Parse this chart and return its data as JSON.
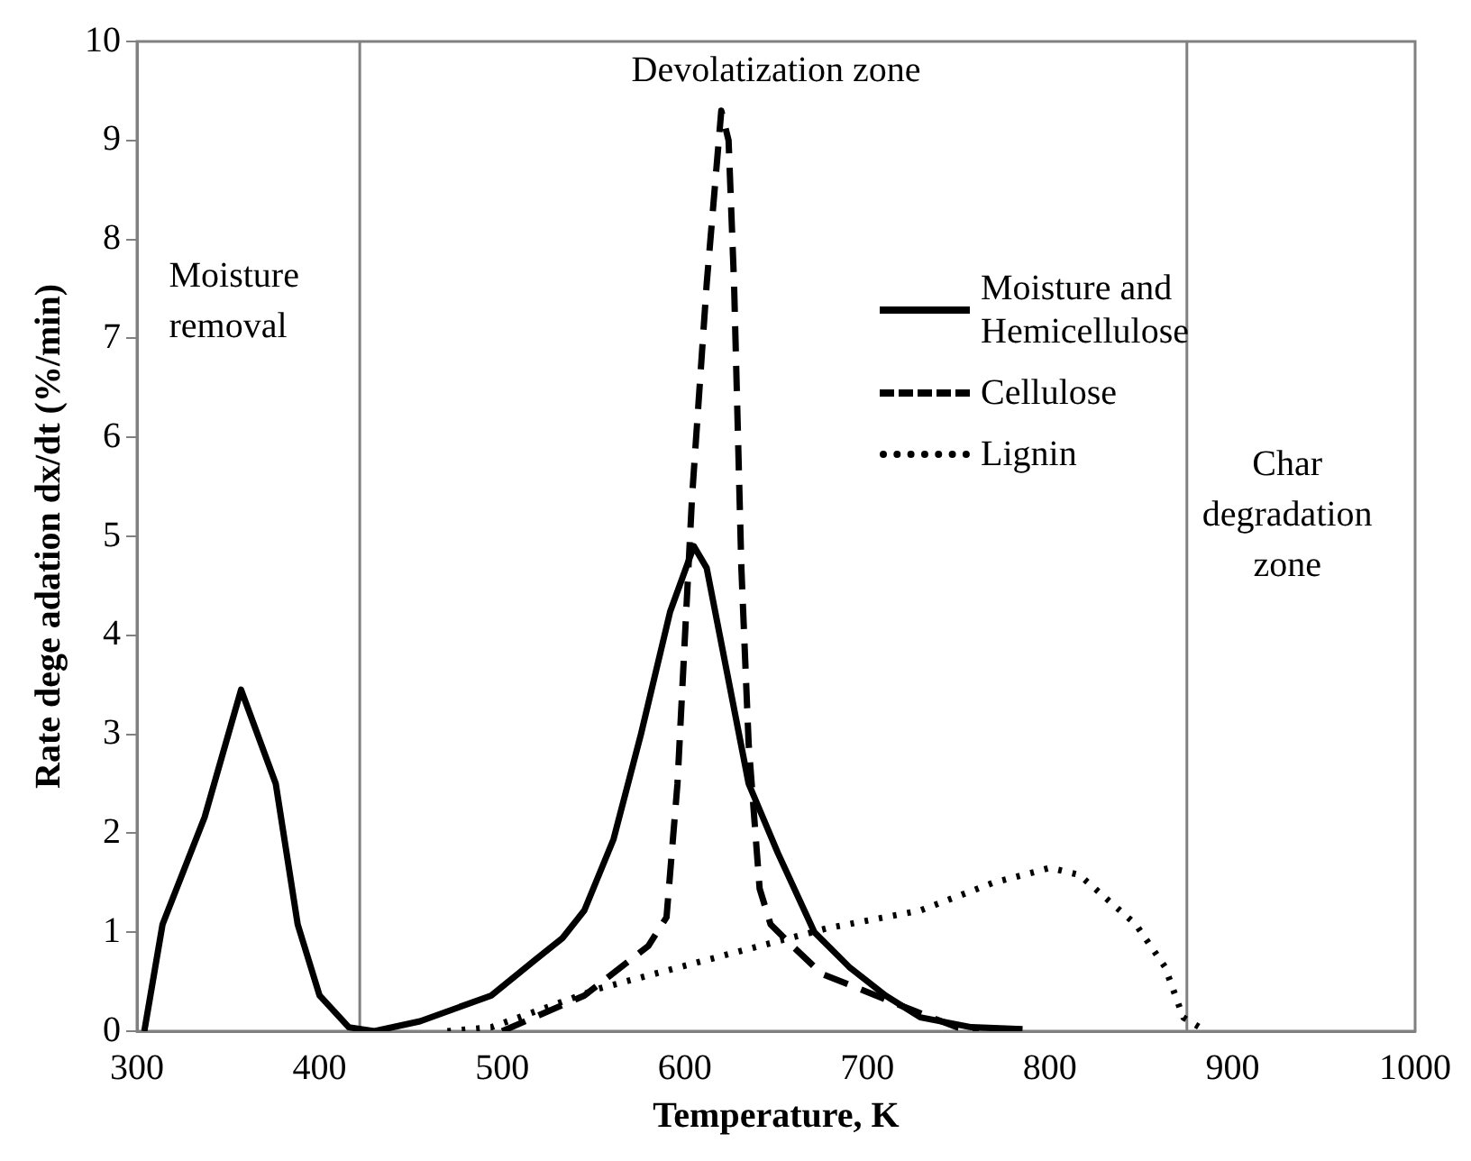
{
  "chart_data": {
    "type": "line",
    "xlabel": "Temperature, K",
    "ylabel": "Rate dege adation dx/dt (%/min)",
    "xlim": [
      300,
      1000
    ],
    "xticks": [
      300,
      400,
      500,
      600,
      700,
      800,
      900,
      1000
    ],
    "ylim": [
      0,
      10
    ],
    "yticks": [
      0,
      1,
      2,
      3,
      4,
      5,
      6,
      7,
      8,
      9,
      10
    ],
    "grid": false,
    "legend": "top right",
    "marker": "none",
    "annotations": [
      "Moisture removal",
      "Devolatization zone",
      "Char degradation zone"
    ],
    "ref_lines": [
      {
        "axis": "x",
        "value": 422,
        "color": "#808080"
      },
      {
        "axis": "x",
        "value": 875,
        "color": "#808080"
      }
    ],
    "series": [
      {
        "name": "Moisture and Hemicellulose",
        "color": "#000000",
        "line_style": "solid",
        "x": [
          304,
          314,
          337,
          357,
          376,
          388,
          400,
          416,
          430,
          455,
          494,
          518,
          533,
          545,
          561,
          576,
          592,
          605,
          612,
          635,
          651,
          671,
          690,
          710,
          729,
          757,
          785
        ],
        "values": [
          0,
          1.08,
          2.16,
          3.45,
          2.5,
          1.08,
          0.36,
          0.04,
          0,
          0.1,
          0.36,
          0.72,
          0.94,
          1.22,
          1.94,
          3.0,
          4.24,
          4.9,
          4.68,
          2.5,
          1.8,
          1.0,
          0.65,
          0.36,
          0.14,
          0.04,
          0.02
        ]
      },
      {
        "name": "Cellulose",
        "color": "#000000",
        "line_style": "dashed",
        "x": [
          500,
          545,
          580,
          590,
          596,
          604,
          612,
          620,
          624,
          627,
          631,
          635,
          641,
          647,
          659,
          675,
          690,
          714,
          749,
          761
        ],
        "values": [
          0,
          0.36,
          0.86,
          1.15,
          2.5,
          5.4,
          7.55,
          9.3,
          9.0,
          7.55,
          4.68,
          2.9,
          1.44,
          1.08,
          0.86,
          0.58,
          0.47,
          0.29,
          0.04,
          0
        ]
      },
      {
        "name": "Lignin",
        "color": "#000000",
        "line_style": "dotted",
        "x": [
          470,
          494,
          553,
          612,
          678,
          729,
          769,
          800,
          816,
          847,
          863,
          873,
          882,
          886
        ],
        "values": [
          0,
          0.04,
          0.43,
          0.72,
          1.04,
          1.22,
          1.5,
          1.65,
          1.58,
          1.08,
          0.65,
          0.14,
          0.04,
          0
        ]
      }
    ]
  }
}
